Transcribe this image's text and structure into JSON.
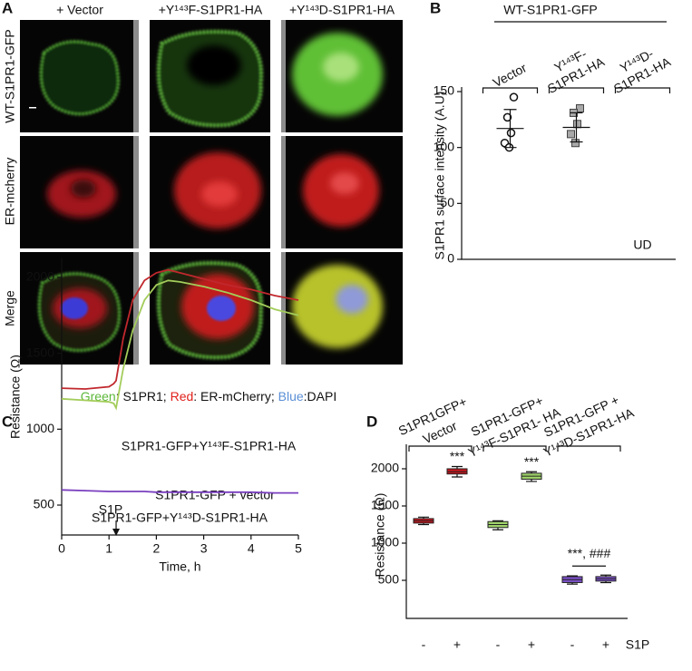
{
  "panel_a": {
    "label": "A",
    "columns": [
      "+ Vector",
      "+Y¹⁴³F-S1PR1-HA",
      "+Y¹⁴³D-S1PR1-HA"
    ],
    "rows": [
      "WT-S1PR1-GFP",
      "ER-mcherry",
      "Merge"
    ],
    "caption": [
      {
        "text": "Green",
        "color": "#5cb83a"
      },
      {
        "text": ": S1PR1; "
      },
      {
        "text": "Red",
        "color": "#e0201b"
      },
      {
        "text": ": ER-mCherry; "
      },
      {
        "text": "Blue",
        "color": "#5b8fd6"
      },
      {
        "text": ":DAPI"
      }
    ]
  },
  "chart_data": [
    {
      "type": "dot",
      "panel": "B",
      "title": "WT-S1PR1-GFP",
      "ylabel": "S1PR1 surface intensity (A.U)",
      "categories": [
        [
          "Vector"
        ],
        [
          "Y¹⁴³F-",
          "S1PR1-HA"
        ],
        [
          "Y¹⁴³D-",
          "S1PR1-HA"
        ]
      ],
      "values": [
        [
          145,
          127,
          113,
          104,
          100
        ],
        [
          135,
          131,
          121,
          112,
          104
        ],
        []
      ],
      "means": [
        117,
        118,
        null
      ],
      "errors": [
        17,
        13,
        null
      ],
      "markers": [
        "circle",
        "square"
      ],
      "marker_colors": [
        "#ffffff",
        "#a8a8a8"
      ],
      "annotations": [
        {
          "text": "UD",
          "category": 2
        }
      ],
      "ylim": [
        0,
        150
      ],
      "yticks": [
        0,
        50,
        100,
        150
      ]
    },
    {
      "type": "line",
      "panel": "C",
      "xlabel": "Time, h",
      "ylabel": "Resistance (Ω)",
      "x": [
        0,
        0.5,
        1,
        1.1,
        1.15,
        1.3,
        1.5,
        1.75,
        2,
        2.25,
        2.5,
        3,
        3.5,
        4,
        4.5,
        5
      ],
      "series": [
        {
          "name": "S1PR1-GFP+Y¹⁴³F-S1PR1-HA",
          "color": "#c0282d",
          "values": [
            1270,
            1265,
            1280,
            1300,
            1320,
            1600,
            1850,
            1980,
            2030,
            2050,
            2030,
            1990,
            1950,
            1920,
            1880,
            1850
          ]
        },
        {
          "name": "S1PR1-GFP + vector",
          "color": "#a3cc5a",
          "values": [
            1200,
            1190,
            1180,
            1170,
            1140,
            1400,
            1650,
            1850,
            1950,
            1980,
            1970,
            1940,
            1900,
            1850,
            1790,
            1750
          ]
        },
        {
          "name": "S1PR1-GFP+Y¹⁴³D-S1PR1-HA",
          "color": "#7a3fbf",
          "values": [
            600,
            595,
            590,
            590,
            590,
            590,
            590,
            590,
            585,
            585,
            585,
            585,
            585,
            585,
            580,
            580
          ]
        }
      ],
      "annotations": [
        {
          "text": "S1P",
          "x": 1.15
        }
      ],
      "xlim": [
        0,
        5
      ],
      "xticks": [
        0,
        1,
        2,
        3,
        4,
        5
      ],
      "ylim": [
        303,
        2125
      ],
      "yticks": [
        500,
        1000,
        1500,
        2000
      ]
    },
    {
      "type": "box",
      "panel": "D",
      "ylabel": "Resistance (Ω)",
      "xlabel": "S1P",
      "categories": [
        "-",
        "+",
        "-",
        "+",
        "-",
        "+"
      ],
      "groups": [
        {
          "name": [
            "S1PR1GFP+",
            "Vector"
          ]
        },
        {
          "name": [
            "S1PR1-GFP+",
            "Y¹⁴³F-S1PR1- HA"
          ]
        },
        {
          "name": [
            "S1PR1-GFP +",
            "Y¹⁴³D-S1PR1-HA"
          ],
          "label": "***, ###"
        }
      ],
      "boxes": [
        {
          "min": 1250,
          "q1": 1270,
          "median": 1300,
          "q3": 1330,
          "max": 1350,
          "color": "#c8161d"
        },
        {
          "min": 1890,
          "q1": 1930,
          "median": 1960,
          "q3": 2000,
          "max": 2030,
          "color": "#c8161d",
          "label": "***"
        },
        {
          "min": 1180,
          "q1": 1210,
          "median": 1250,
          "q3": 1290,
          "max": 1300,
          "color": "#9fd36a"
        },
        {
          "min": 1830,
          "q1": 1860,
          "median": 1900,
          "q3": 1940,
          "max": 1960,
          "color": "#9fd36a",
          "label": "***"
        },
        {
          "min": 450,
          "q1": 470,
          "median": 510,
          "q3": 550,
          "max": 560,
          "color": "#7b4fc7"
        },
        {
          "min": 470,
          "q1": 490,
          "median": 520,
          "q3": 550,
          "max": 570,
          "color": "#7b4fc7"
        }
      ],
      "ylim": [
        -12,
        2329
      ],
      "yticks": [
        500,
        1000,
        1500,
        2000
      ]
    }
  ]
}
